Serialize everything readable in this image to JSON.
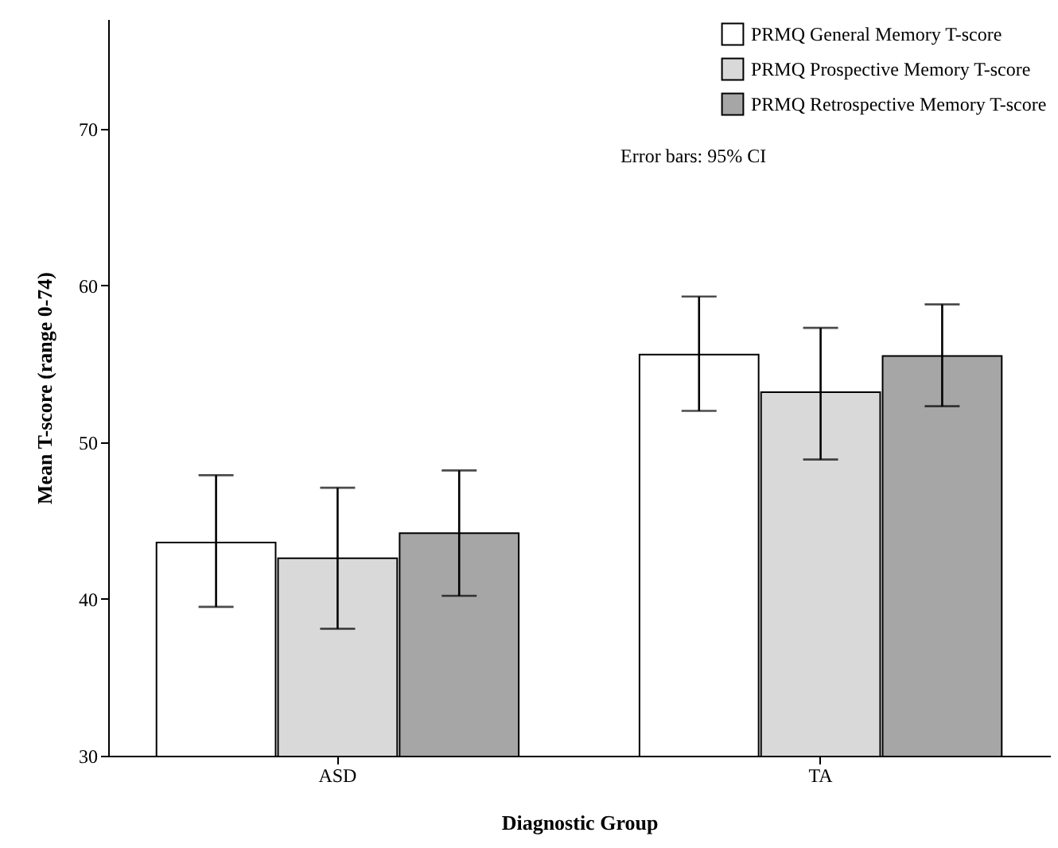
{
  "chart_data": {
    "type": "bar",
    "xlabel": "Diagnostic Group",
    "ylabel": "Mean T-score (range 0-74)",
    "categories": [
      "ASD",
      "TA"
    ],
    "series": [
      {
        "name": "PRMQ General Memory T-score",
        "color": "#ffffff",
        "values": [
          43.6,
          55.6
        ],
        "errors": [
          [
            39.5,
            47.9
          ],
          [
            52.0,
            59.3
          ]
        ]
      },
      {
        "name": "PRMQ Prospective Memory T-score",
        "color": "#d9d9d9",
        "values": [
          42.6,
          53.2
        ],
        "errors": [
          [
            38.1,
            47.1
          ],
          [
            48.9,
            57.3
          ]
        ]
      },
      {
        "name": "PRMQ Retrospective Memory T-score",
        "color": "#a6a6a6",
        "values": [
          44.2,
          55.5
        ],
        "errors": [
          [
            40.2,
            48.2
          ],
          [
            52.3,
            58.8
          ]
        ]
      }
    ],
    "ylim": [
      30,
      77
    ],
    "yticks": [
      30,
      40,
      50,
      60,
      70
    ],
    "grid": false,
    "legend": "top right",
    "annotations": [
      "Error bars: 95% CI"
    ]
  }
}
